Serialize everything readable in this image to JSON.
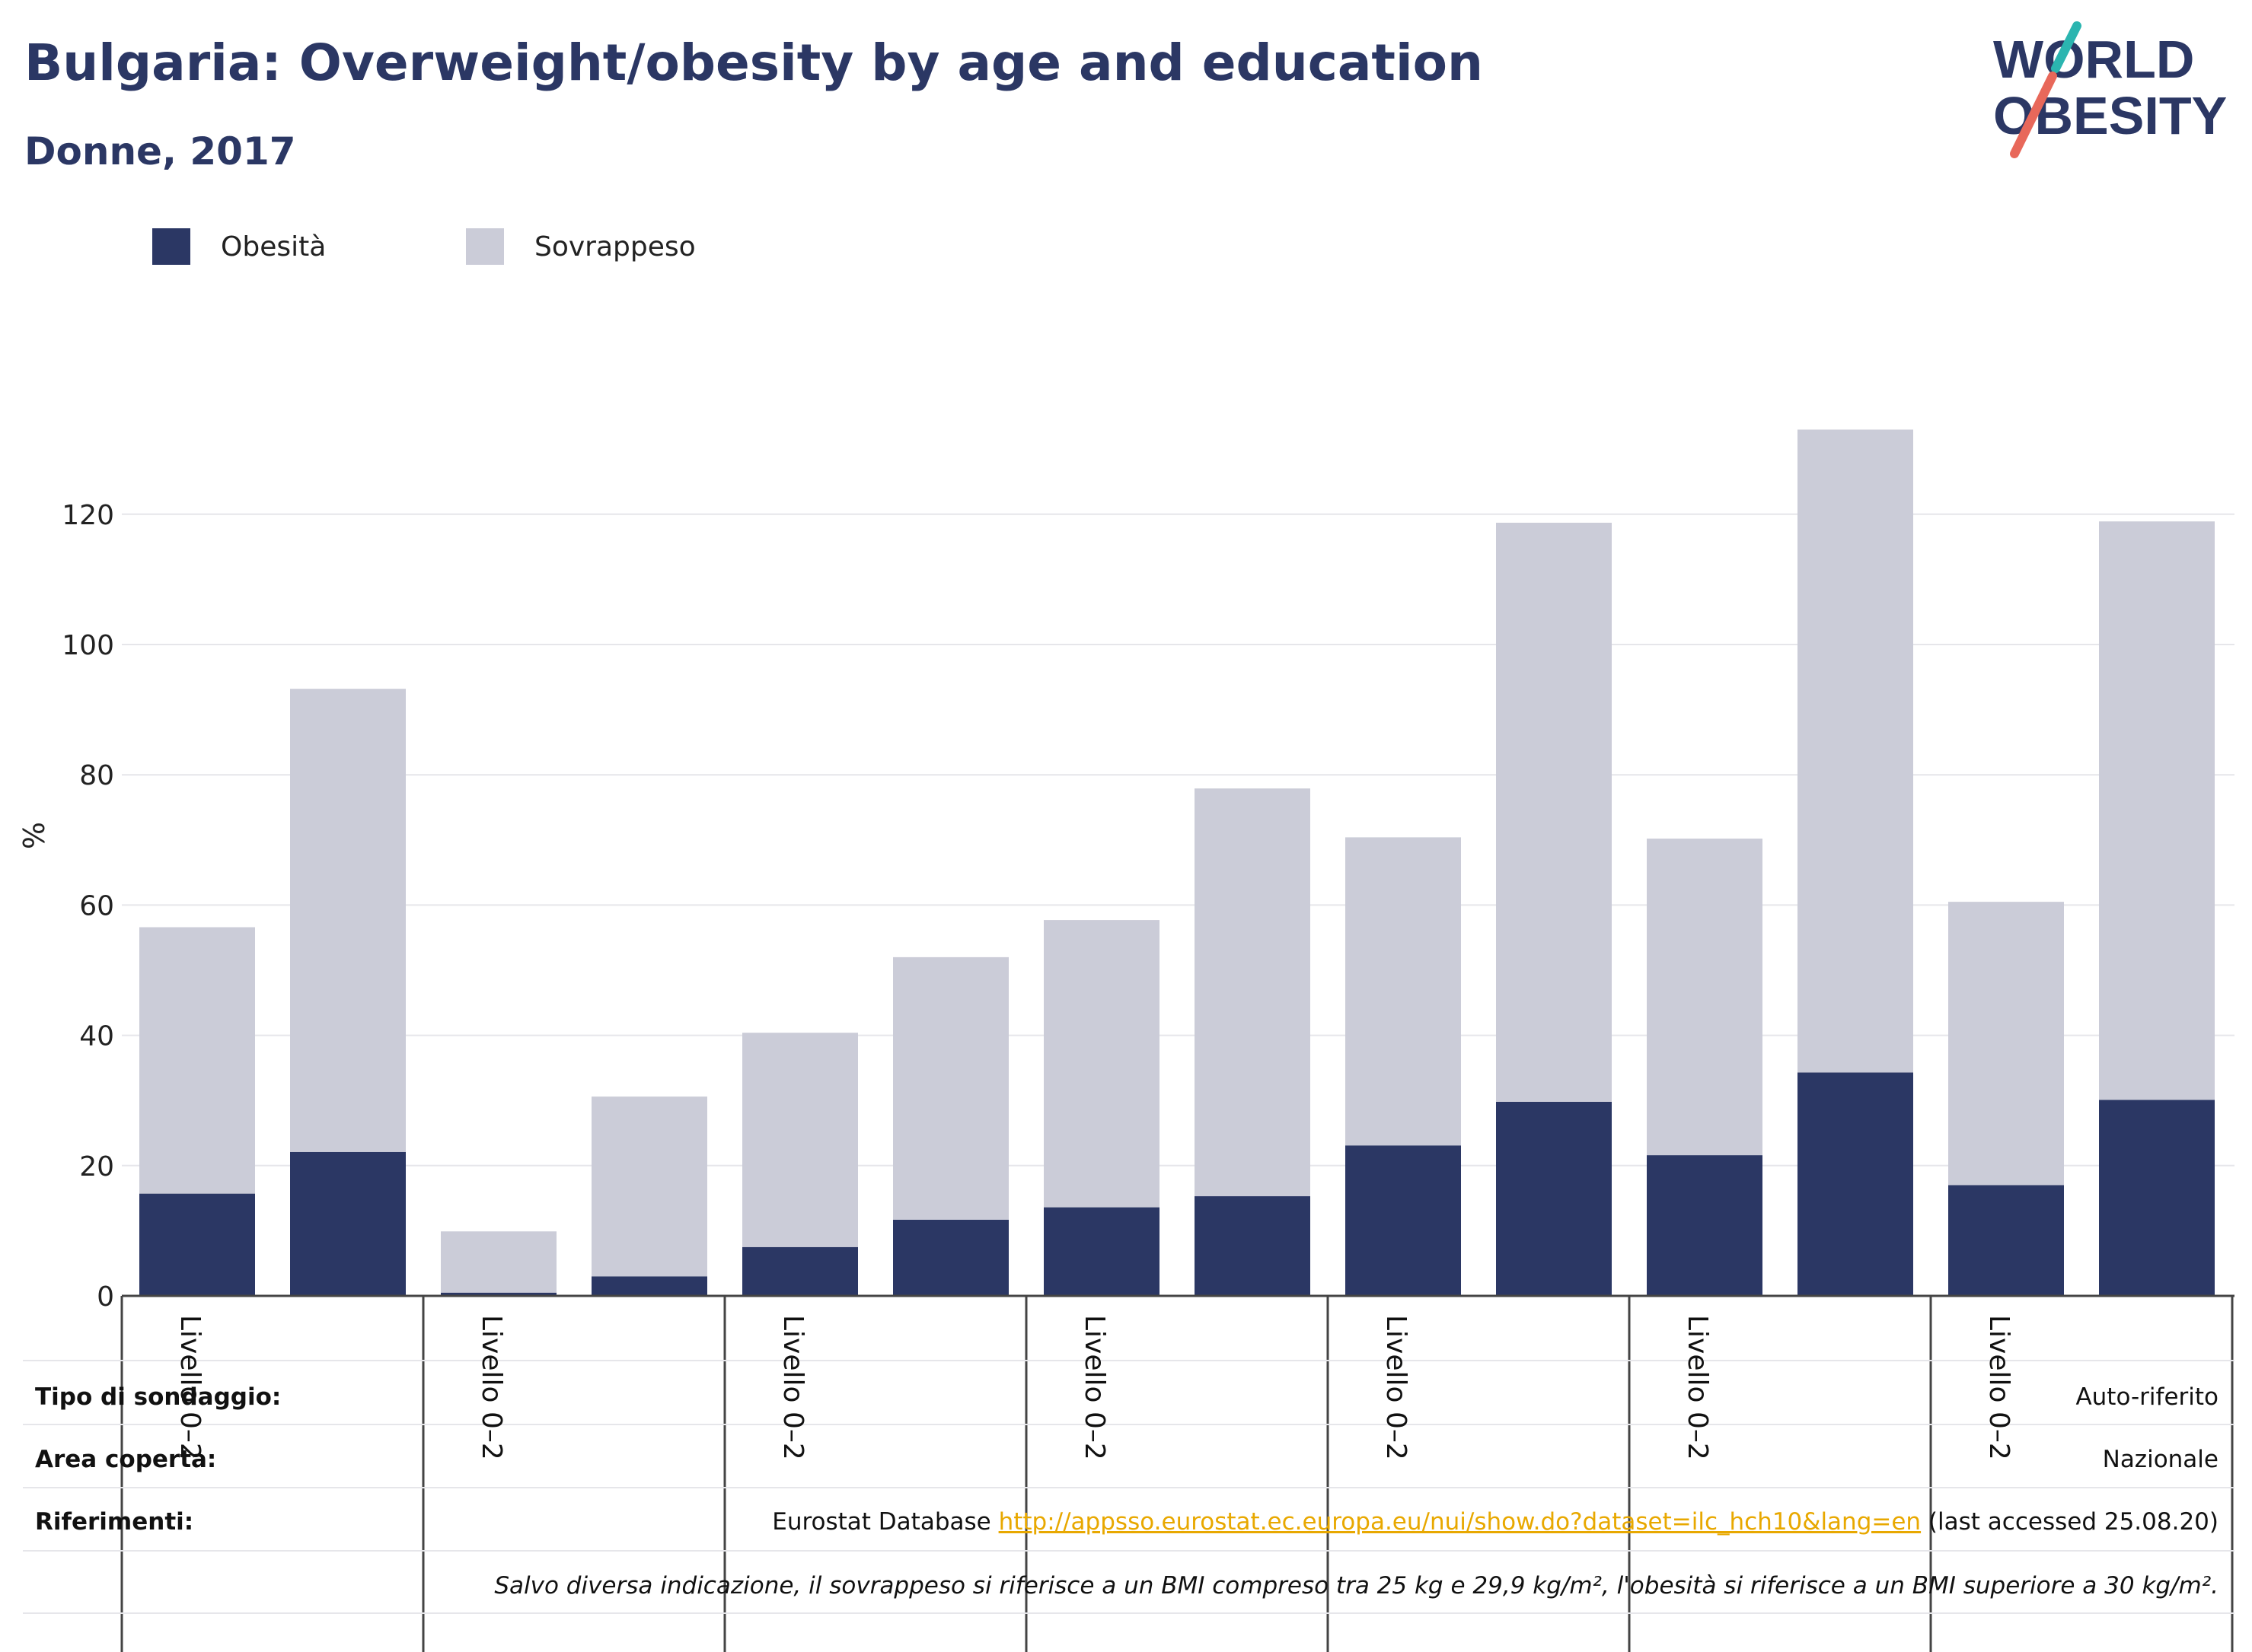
{
  "header": {
    "title": "Bulgaria: Overweight/obesity by age and education",
    "subtitle": "Donne, 2017"
  },
  "logo": {
    "line1": "WORLD",
    "line2": "OBESITY"
  },
  "colors": {
    "obesity": "#2b3764",
    "overweight": "#cbccd8",
    "title": "#2b3764",
    "link": "#e8a800"
  },
  "chart_data": {
    "type": "bar",
    "stacked": true,
    "ylabel": "%",
    "ylim": [
      0,
      135
    ],
    "yticks": [
      0,
      20,
      40,
      60,
      80,
      100,
      120
    ],
    "grid": true,
    "legend_position": "top-left",
    "group_labels": [
      "Livello 0–2",
      "Livello 0–2",
      "Livello 0–2",
      "Livello 0–2",
      "Livello 0–2",
      "Livello 0–2",
      "Livello 0–2"
    ],
    "bars_per_group": 2,
    "series": [
      {
        "name": "Obesità",
        "color": "#2b3764",
        "values": [
          15.7,
          22.1,
          0.5,
          3.0,
          7.5,
          11.7,
          13.6,
          15.3,
          23.1,
          29.8,
          21.6,
          34.3,
          17.0,
          30.1
        ]
      },
      {
        "name": "Sovrappeso",
        "color": "#cbccd8",
        "values": [
          40.9,
          71.1,
          9.4,
          27.6,
          32.9,
          40.3,
          44.1,
          62.6,
          47.3,
          88.9,
          48.6,
          98.7,
          43.5,
          88.8
        ]
      }
    ]
  },
  "info_table": {
    "survey_type_label": "Tipo di sondaggio:",
    "survey_type_value": "Auto-riferito",
    "area_label": "Area coperta:",
    "area_value": "Nazionale",
    "references_label": "Riferimenti:",
    "references_prefix": "Eurostat Database ",
    "references_link": "http://appsso.eurostat.ec.europa.eu/nui/show.do?dataset=ilc_hch10&lang=en",
    "references_suffix": " (last accessed 25.08.20)",
    "note": "Salvo diversa indicazione, il sovrappeso si riferisce a un BMI compreso tra 25 kg e 29,9 kg/m², l'obesità si riferisce a un BMI superiore a 30 kg/m²."
  }
}
